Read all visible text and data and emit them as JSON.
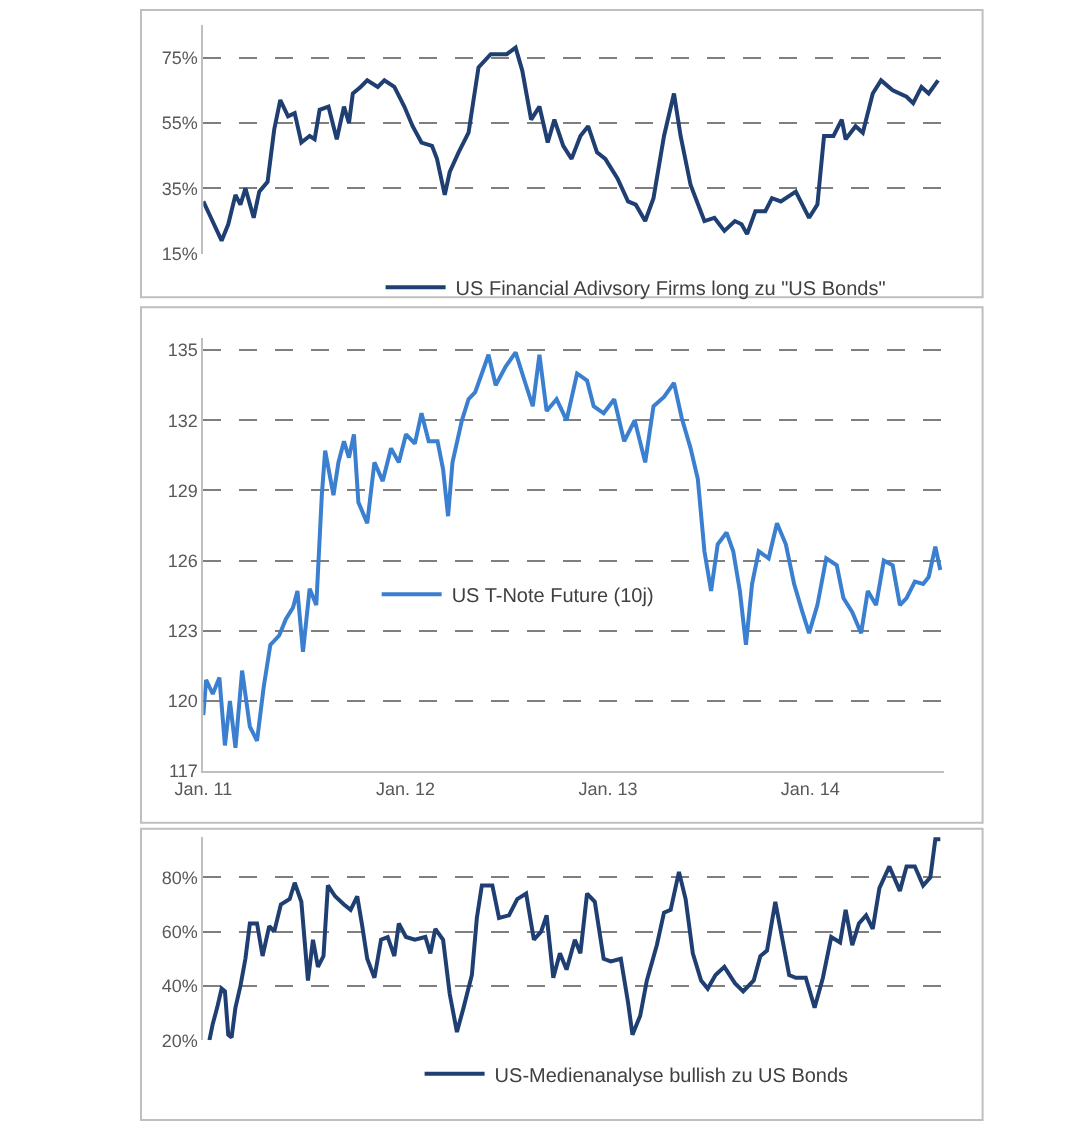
{
  "chart_data": [
    {
      "type": "line",
      "xlim": [
        "2011-01-01",
        "2014-08-30"
      ],
      "ylim": [
        15,
        85
      ],
      "yticks": [
        {
          "value": 15,
          "label": "15%"
        },
        {
          "value": 35,
          "label": "35%"
        },
        {
          "value": 55,
          "label": "55%"
        },
        {
          "value": 75,
          "label": "75%"
        }
      ],
      "grid": "y",
      "legend": "bottom",
      "tick_labels": "y",
      "x": [
        "2011-01-01",
        "2011-01-12",
        "2011-02-03",
        "2011-02-15",
        "2011-02-28",
        "2011-03-09",
        "2011-03-18",
        "2011-04-02",
        "2011-04-12",
        "2011-04-27",
        "2011-05-09",
        "2011-05-20",
        "2011-06-03",
        "2011-06-15",
        "2011-06-27",
        "2011-07-12",
        "2011-07-21",
        "2011-07-30",
        "2011-08-15",
        "2011-08-30",
        "2011-09-12",
        "2011-09-21",
        "2011-09-28",
        "2011-10-12",
        "2011-10-24",
        "2011-11-12",
        "2011-11-24",
        "2011-12-12",
        "2011-12-30",
        "2012-01-14",
        "2012-01-30",
        "2012-02-18",
        "2012-02-27",
        "2012-03-12",
        "2012-03-21",
        "2012-04-06",
        "2012-04-24",
        "2012-05-12",
        "2012-06-03",
        "2012-07-02",
        "2012-07-18",
        "2012-07-30",
        "2012-08-15",
        "2012-08-30",
        "2012-09-14",
        "2012-09-26",
        "2012-10-12",
        "2012-10-27",
        "2012-11-12",
        "2012-11-26",
        "2012-12-12",
        "2012-12-27",
        "2013-01-18",
        "2013-02-06",
        "2013-02-20",
        "2013-03-09",
        "2013-03-24",
        "2013-04-12",
        "2013-04-30",
        "2013-05-12",
        "2013-05-30",
        "2013-06-24",
        "2013-07-12",
        "2013-07-30",
        "2013-08-18",
        "2013-08-30",
        "2013-09-09",
        "2013-09-24",
        "2013-10-12",
        "2013-10-24",
        "2013-11-09",
        "2013-12-06",
        "2013-12-30",
        "2014-01-14",
        "2014-01-26",
        "2014-02-12",
        "2014-02-27",
        "2014-03-06",
        "2014-03-24",
        "2014-04-06",
        "2014-04-24",
        "2014-05-09",
        "2014-05-30",
        "2014-06-24",
        "2014-07-06",
        "2014-07-21",
        "2014-08-03",
        "2014-08-20"
      ],
      "series": [
        {
          "name": "US Financial Adivsory Firms long zu \"US Bonds\"",
          "color": "#1f3f73",
          "values": [
            31,
            27,
            19,
            24,
            33,
            30,
            35,
            26,
            34,
            37,
            53,
            62,
            57,
            58,
            49,
            51,
            50,
            59,
            60,
            50,
            60,
            55,
            64,
            66,
            68,
            66,
            68,
            66,
            60,
            54,
            49,
            48,
            44,
            33,
            40,
            46,
            52,
            72,
            76,
            76,
            78,
            71,
            56,
            60,
            49,
            56,
            48,
            44,
            51,
            54,
            46,
            44,
            38,
            31,
            30,
            25,
            32,
            51,
            64,
            51,
            36,
            25,
            26,
            22,
            25,
            24,
            21,
            28,
            28,
            32,
            31,
            34,
            26,
            30,
            51,
            51,
            56,
            50,
            54,
            52,
            64,
            68,
            65,
            63,
            61,
            66,
            64,
            68
          ]
        }
      ]
    },
    {
      "type": "line",
      "xlim": [
        "2011-01-01",
        "2014-08-30"
      ],
      "ylim": [
        117,
        135.5
      ],
      "yticks": [
        117,
        120,
        123,
        126,
        129,
        132,
        135
      ],
      "xticks": [
        {
          "value": "2011-01-01",
          "label": "Jan. 11"
        },
        {
          "value": "2012-01-01",
          "label": "Jan. 12"
        },
        {
          "value": "2013-01-01",
          "label": "Jan. 13"
        },
        {
          "value": "2014-01-01",
          "label": "Jan. 14"
        }
      ],
      "grid": "y",
      "legend": "center",
      "x": [
        "2011-01-01",
        "2011-01-06",
        "2011-01-18",
        "2011-01-30",
        "2011-02-09",
        "2011-02-18",
        "2011-02-28",
        "2011-03-12",
        "2011-03-26",
        "2011-04-08",
        "2011-04-20",
        "2011-05-02",
        "2011-05-18",
        "2011-05-30",
        "2011-06-12",
        "2011-06-20",
        "2011-06-30",
        "2011-07-12",
        "2011-07-24",
        "2011-08-03",
        "2011-08-09",
        "2011-08-24",
        "2011-09-02",
        "2011-09-12",
        "2011-09-21",
        "2011-09-30",
        "2011-10-08",
        "2011-10-24",
        "2011-11-06",
        "2011-11-21",
        "2011-12-06",
        "2011-12-20",
        "2012-01-02",
        "2012-01-18",
        "2012-01-30",
        "2012-02-12",
        "2012-02-28",
        "2012-03-09",
        "2012-03-18",
        "2012-03-26",
        "2012-04-12",
        "2012-04-24",
        "2012-05-06",
        "2012-05-18",
        "2012-05-30",
        "2012-06-12",
        "2012-06-30",
        "2012-07-18",
        "2012-08-03",
        "2012-08-18",
        "2012-08-30",
        "2012-09-12",
        "2012-09-30",
        "2012-10-18",
        "2012-11-06",
        "2012-11-24",
        "2012-12-06",
        "2012-12-24",
        "2013-01-12",
        "2013-01-30",
        "2013-02-18",
        "2013-03-09",
        "2013-03-24",
        "2013-04-12",
        "2013-04-30",
        "2013-05-14",
        "2013-05-30",
        "2013-06-12",
        "2013-06-24",
        "2013-07-06",
        "2013-07-18",
        "2013-08-03",
        "2013-08-15",
        "2013-08-27",
        "2013-09-07",
        "2013-09-18",
        "2013-09-30",
        "2013-10-18",
        "2013-11-02",
        "2013-11-18",
        "2013-12-03",
        "2013-12-18",
        "2013-12-30",
        "2014-01-14",
        "2014-01-30",
        "2014-02-18",
        "2014-03-02",
        "2014-03-18",
        "2014-04-03",
        "2014-04-15",
        "2014-04-30",
        "2014-05-14",
        "2014-05-30",
        "2014-06-12",
        "2014-06-24",
        "2014-07-09",
        "2014-07-24",
        "2014-08-03",
        "2014-08-15",
        "2014-08-24"
      ],
      "series": [
        {
          "name": "US T-Note Future (10j)",
          "color": "#3a7fd0",
          "values": [
            119.4,
            120.9,
            120.3,
            121.0,
            118.1,
            120.0,
            118.0,
            121.3,
            118.9,
            118.3,
            120.6,
            122.4,
            122.8,
            123.5,
            124.0,
            124.7,
            122.1,
            124.8,
            124.1,
            128.8,
            130.7,
            128.8,
            130.2,
            131.1,
            130.4,
            131.4,
            128.5,
            127.6,
            130.2,
            129.4,
            130.8,
            130.2,
            131.4,
            131.0,
            132.3,
            131.1,
            131.1,
            129.9,
            127.9,
            130.2,
            132.0,
            132.9,
            133.2,
            134.0,
            134.8,
            133.5,
            134.3,
            134.9,
            133.7,
            132.6,
            134.8,
            132.4,
            132.9,
            132.0,
            134.0,
            133.7,
            132.6,
            132.3,
            132.9,
            131.1,
            132.0,
            130.2,
            132.6,
            133.0,
            133.6,
            132.1,
            130.8,
            129.5,
            126.4,
            124.7,
            126.7,
            127.2,
            126.4,
            124.7,
            122.4,
            125.0,
            126.4,
            126.1,
            127.6,
            126.7,
            125.0,
            123.8,
            122.9,
            124.1,
            126.1,
            125.8,
            124.4,
            123.8,
            122.9,
            124.7,
            124.1,
            126.0,
            125.8,
            124.1,
            124.4,
            125.1,
            125.0,
            125.3,
            126.6,
            125.6
          ]
        }
      ]
    },
    {
      "type": "line",
      "xlim": [
        "2011-01-01",
        "2014-08-30"
      ],
      "ylim": [
        20,
        95
      ],
      "yticks": [
        {
          "value": 20,
          "label": "20%"
        },
        {
          "value": 40,
          "label": "40%"
        },
        {
          "value": 60,
          "label": "60%"
        },
        {
          "value": 80,
          "label": "80%"
        }
      ],
      "grid": "y",
      "legend": "bottom",
      "tick_labels": "y",
      "x": [
        "2011-01-12",
        "2011-01-18",
        "2011-01-26",
        "2011-02-03",
        "2011-02-09",
        "2011-02-15",
        "2011-02-21",
        "2011-02-28",
        "2011-03-09",
        "2011-03-18",
        "2011-03-26",
        "2011-04-08",
        "2011-04-18",
        "2011-04-30",
        "2011-05-09",
        "2011-05-21",
        "2011-06-06",
        "2011-06-15",
        "2011-06-27",
        "2011-07-09",
        "2011-07-18",
        "2011-07-27",
        "2011-08-06",
        "2011-08-14",
        "2011-08-27",
        "2011-09-12",
        "2011-09-24",
        "2011-10-06",
        "2011-10-15",
        "2011-10-24",
        "2011-11-06",
        "2011-11-18",
        "2011-11-30",
        "2011-12-12",
        "2011-12-20",
        "2012-01-02",
        "2012-01-18",
        "2012-02-06",
        "2012-02-15",
        "2012-02-24",
        "2012-03-09",
        "2012-03-21",
        "2012-04-03",
        "2012-04-15",
        "2012-04-30",
        "2012-05-09",
        "2012-05-18",
        "2012-06-06",
        "2012-06-18",
        "2012-07-06",
        "2012-07-21",
        "2012-08-06",
        "2012-08-20",
        "2012-09-02",
        "2012-09-12",
        "2012-09-24",
        "2012-10-06",
        "2012-10-18",
        "2012-11-02",
        "2012-11-12",
        "2012-11-24",
        "2012-12-08",
        "2012-12-24",
        "2013-01-06",
        "2013-01-24",
        "2013-02-06",
        "2013-02-14",
        "2013-02-28",
        "2013-03-12",
        "2013-03-30",
        "2013-04-12",
        "2013-04-24",
        "2013-05-09",
        "2013-05-21",
        "2013-06-03",
        "2013-06-18",
        "2013-06-30",
        "2013-07-14",
        "2013-07-30",
        "2013-08-18",
        "2013-09-02",
        "2013-09-21",
        "2013-10-03",
        "2013-10-15",
        "2013-10-30",
        "2013-11-12",
        "2013-11-24",
        "2013-12-06",
        "2013-12-24",
        "2014-01-09",
        "2014-01-24",
        "2014-02-08",
        "2014-02-24",
        "2014-03-06",
        "2014-03-18",
        "2014-03-30",
        "2014-04-12",
        "2014-04-24",
        "2014-05-06",
        "2014-05-24",
        "2014-06-12",
        "2014-06-24",
        "2014-07-09",
        "2014-07-24",
        "2014-08-06",
        "2014-08-15",
        "2014-08-24"
      ],
      "series": [
        {
          "name": "US-Medienanalyse bullish zu US Bonds",
          "color": "#1f3f73",
          "values": [
            20,
            26,
            32,
            39,
            38,
            22,
            21,
            32,
            40,
            50,
            63,
            63,
            51,
            62,
            60,
            70,
            72,
            78,
            71,
            42,
            57,
            47,
            51,
            77,
            73,
            70,
            68,
            73,
            62,
            50,
            43,
            57,
            58,
            51,
            63,
            58,
            57,
            58,
            52,
            61,
            57,
            37,
            23,
            32,
            44,
            65,
            77,
            77,
            65,
            66,
            72,
            74,
            57,
            60,
            66,
            43,
            52,
            46,
            57,
            52,
            74,
            71,
            50,
            49,
            50,
            34,
            22,
            29,
            42,
            55,
            67,
            68,
            82,
            72,
            52,
            42,
            39,
            44,
            47,
            41,
            38,
            42,
            51,
            53,
            71,
            57,
            44,
            43,
            43,
            32,
            43,
            58,
            56,
            68,
            55,
            63,
            66,
            61,
            76,
            84,
            75,
            84,
            84,
            77,
            80,
            94,
            94
          ]
        }
      ]
    }
  ]
}
